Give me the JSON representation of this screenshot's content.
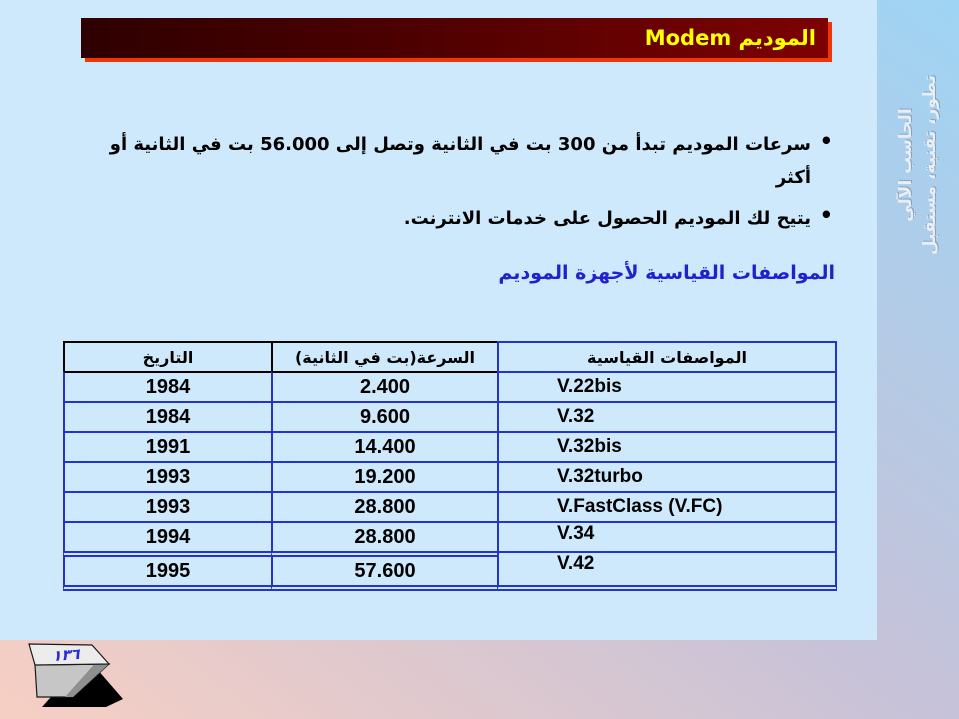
{
  "title_bar": {
    "title": "الموديم Modem"
  },
  "bullets": {
    "marker": "•",
    "items": [
      {
        "text": "سرعات الموديم تبدأ من 300 بت في الثانية وتصل إلى 56.000 بت في الثانية أو\nأكثر"
      },
      {
        "text": "يتيح لك الموديم الحصول على خدمات الانترنت."
      }
    ]
  },
  "section_heading": "المواصفات القياسية لأجهزة الموديم",
  "table": {
    "headers": [
      "التاريخ",
      "السرعة(بت في الثانية)",
      "المواصفات القياسية"
    ],
    "rows": [
      [
        "1984",
        "2.400",
        "V.22bis"
      ],
      [
        "1984",
        "9.600",
        "V.32"
      ],
      [
        "1991",
        "14.400",
        "V.32bis"
      ],
      [
        "1993",
        "19.200",
        "V.32turbo"
      ],
      [
        "1993",
        "28.800",
        "V.FastClass (V.FC)"
      ],
      [
        "1994",
        "28.800",
        "V.34"
      ],
      [
        "1995",
        "57.600",
        "V.42"
      ]
    ]
  },
  "sidebar": {
    "line1": "الحاسب الآلي",
    "line2": "تطور، تقنية، مستقبل"
  },
  "page_key": {
    "number": "١٣٦"
  },
  "colors": {
    "content_bg": "#cfe9fc",
    "title_bg_dark": "#2e0000",
    "title_bg_light": "#7d0202",
    "title_shadow": "#ee3606",
    "title_text": "#ffff00",
    "heading_blue": "#2121cd",
    "table_border_blue": "#2433cc",
    "table_border_black": "#000000",
    "bg_top_right_blue": "#9fd4f4",
    "bg_mid_lavender": "#c6c2d9",
    "bg_bottom_left_pink": "#f7cfc3",
    "key_number_blue": "#2b2bd6"
  }
}
